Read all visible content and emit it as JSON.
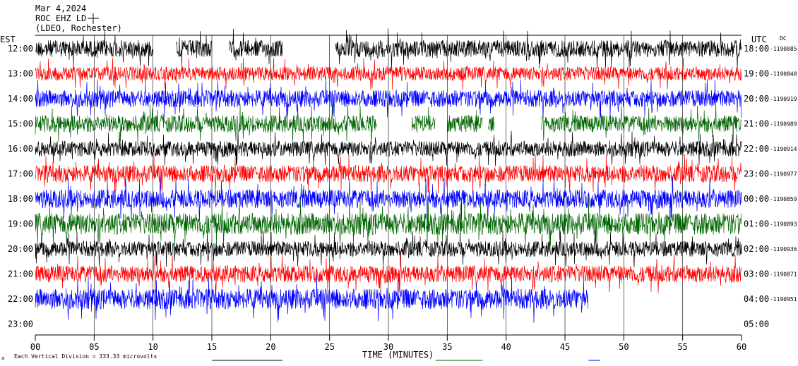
{
  "header": {
    "date": "Mar 4,2024",
    "station": "ROC EHZ LD",
    "network": "(LDEO, Rochester)"
  },
  "axes": {
    "left_timezone": "EST",
    "right_timezone": "UTC",
    "dc_label": "DC",
    "x_title": "TIME (MINUTES)",
    "x_ticks": [
      "00",
      "05",
      "10",
      "15",
      "20",
      "25",
      "30",
      "35",
      "40",
      "45",
      "50",
      "55",
      "60"
    ],
    "scale_note": "Each Vertical Division =  333.33 microvolts",
    "corner_mark": "a"
  },
  "colors": {
    "black": "#000000",
    "red": "#ff0000",
    "blue": "#0000ff",
    "green": "#006400",
    "grid": "#000000"
  },
  "chart_data": {
    "type": "helicorder",
    "x_unit": "minutes",
    "xlim": [
      0,
      60
    ],
    "grid": "vertical lines every 5 minutes",
    "rows": [
      {
        "est": "12:00",
        "utc": "18:00",
        "dc": "-1190885",
        "color": "black",
        "amplitude": 0.55,
        "segments": [
          [
            0,
            10
          ],
          [
            12,
            15
          ],
          [
            16.5,
            21
          ],
          [
            25.5,
            60
          ]
        ]
      },
      {
        "est": "13:00",
        "utc": "19:00",
        "dc": "-1190848",
        "color": "red",
        "amplitude": 0.45,
        "segments": [
          [
            0,
            60
          ]
        ]
      },
      {
        "est": "14:00",
        "utc": "20:00",
        "dc": "-1190919",
        "color": "blue",
        "amplitude": 0.55,
        "segments": [
          [
            0,
            60
          ]
        ]
      },
      {
        "est": "15:00",
        "utc": "21:00",
        "dc": "-1190989",
        "color": "green",
        "amplitude": 0.55,
        "segments": [
          [
            0,
            29
          ],
          [
            32,
            34
          ],
          [
            35,
            38
          ],
          [
            38.5,
            39
          ],
          [
            43,
            60
          ]
        ]
      },
      {
        "est": "16:00",
        "utc": "22:00",
        "dc": "-1190914",
        "color": "black",
        "amplitude": 0.5,
        "segments": [
          [
            0,
            60
          ]
        ]
      },
      {
        "est": "17:00",
        "utc": "23:00",
        "dc": "-1190977",
        "color": "red",
        "amplitude": 0.55,
        "segments": [
          [
            0,
            60
          ]
        ]
      },
      {
        "est": "18:00",
        "utc": "00:00",
        "dc": "-1190859",
        "color": "blue",
        "amplitude": 0.6,
        "segments": [
          [
            0,
            60
          ]
        ]
      },
      {
        "est": "19:00",
        "utc": "01:00",
        "dc": "-1190893",
        "color": "green",
        "amplitude": 0.7,
        "segments": [
          [
            0,
            60
          ]
        ]
      },
      {
        "est": "20:00",
        "utc": "02:00",
        "dc": "-1190936",
        "color": "black",
        "amplitude": 0.5,
        "segments": [
          [
            0,
            60
          ]
        ]
      },
      {
        "est": "21:00",
        "utc": "03:00",
        "dc": "-1190871",
        "color": "red",
        "amplitude": 0.55,
        "segments": [
          [
            0,
            60
          ]
        ]
      },
      {
        "est": "22:00",
        "utc": "04:00",
        "dc": "-1190951",
        "color": "blue",
        "amplitude": 0.65,
        "segments": [
          [
            0,
            47
          ]
        ]
      },
      {
        "est": "23:00",
        "utc": "05:00",
        "dc": "",
        "color": "black",
        "amplitude": 0,
        "segments": []
      }
    ],
    "bottom_markers": [
      {
        "color": "black",
        "from_min": 15,
        "to_min": 21
      },
      {
        "color": "green",
        "from_min": 34,
        "to_min": 38
      },
      {
        "color": "blue",
        "from_min": 47,
        "to_min": 48
      }
    ]
  }
}
